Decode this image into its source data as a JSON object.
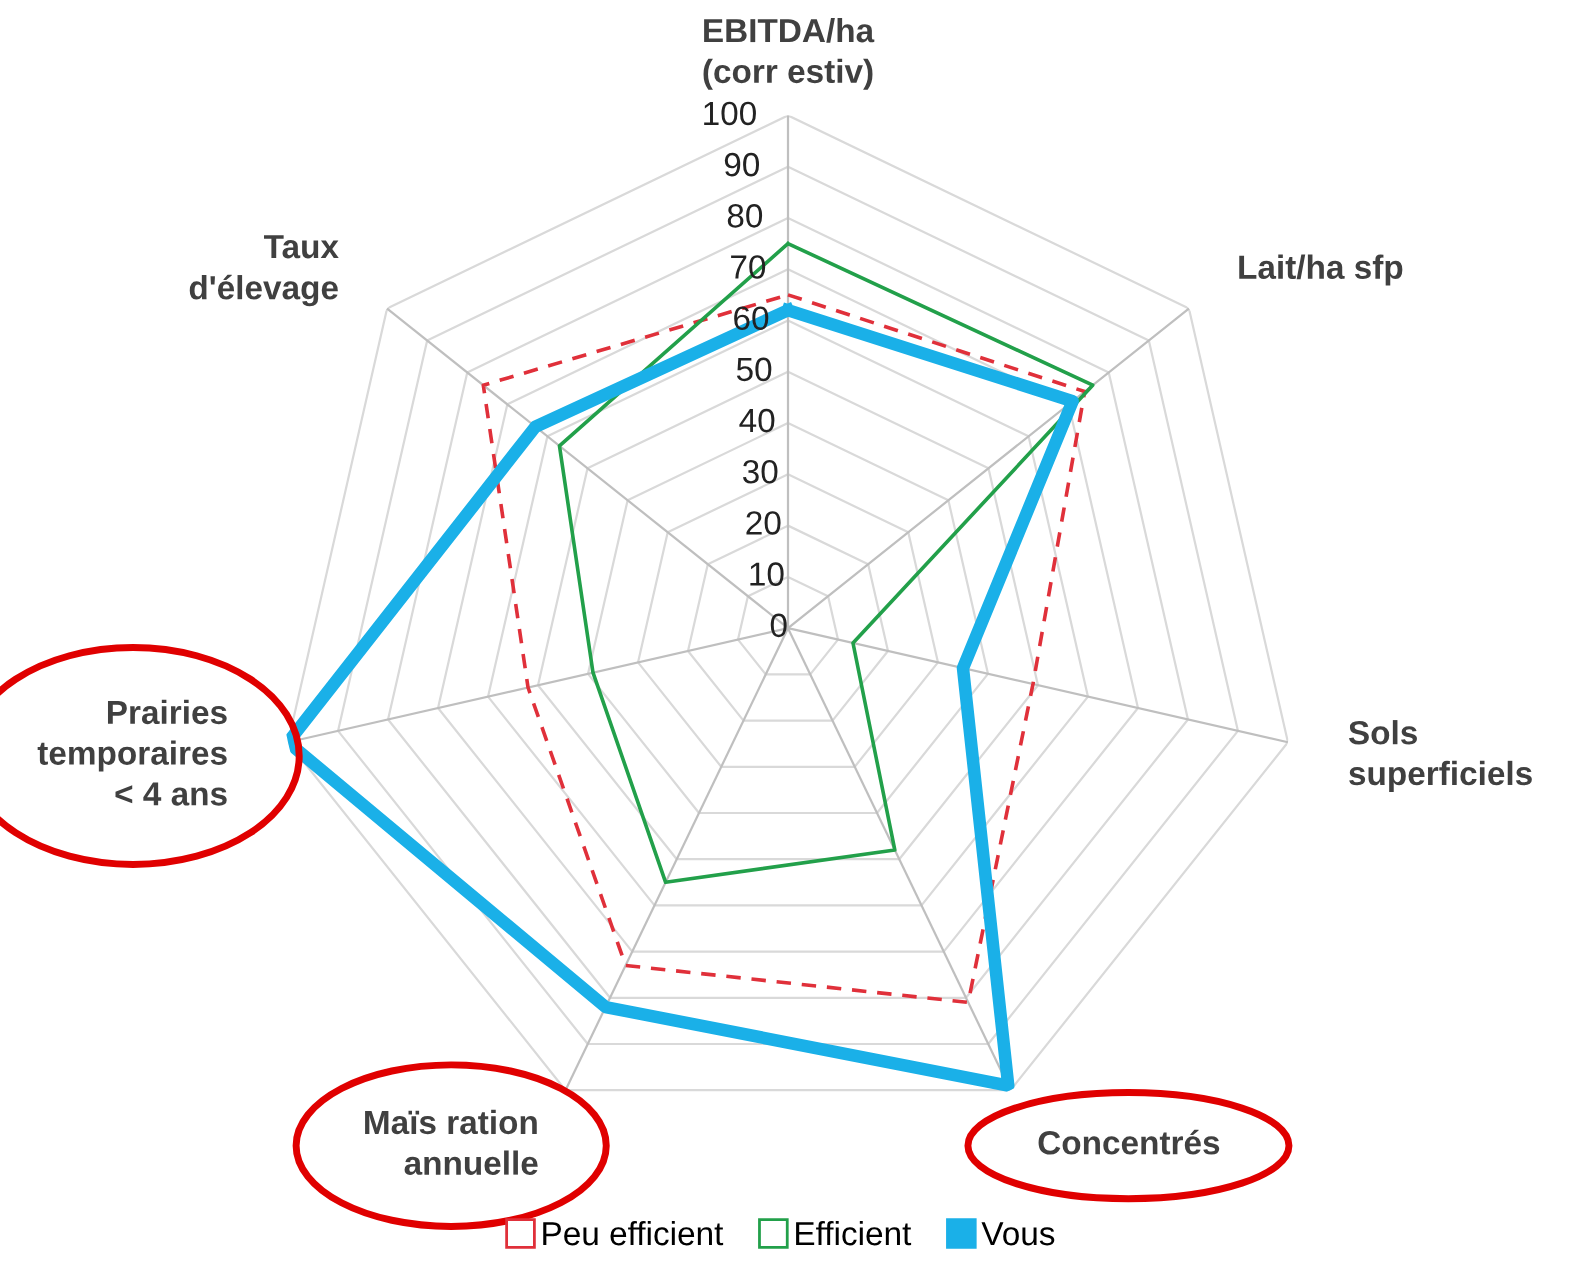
{
  "chart_data": {
    "type": "radar",
    "categories": [
      "EBITDA/ha\n(corr estiv)",
      "Lait/ha sfp",
      "Sols\nsuperficiels",
      "Concentrés",
      "Maïs ration\nannuelle",
      "Prairies\ntemporaires\n< 4 ans",
      "Taux\nd'élevage"
    ],
    "series": [
      {
        "name": "Peu efficient",
        "color": "#e0303a",
        "line_style": "dashed",
        "values": [
          65,
          74,
          49,
          81,
          73,
          52,
          76
        ]
      },
      {
        "name": "Efficient",
        "color": "#22a04a",
        "line_style": "solid",
        "values": [
          75,
          76,
          13,
          48,
          55,
          39,
          57
        ]
      },
      {
        "name": "Vous",
        "color": "#1ab0e8",
        "line_style": "solid",
        "values": [
          62,
          71,
          35,
          99,
          82,
          100,
          63
        ]
      }
    ],
    "ylim": [
      0,
      100
    ],
    "yticks": [
      0,
      10,
      20,
      30,
      40,
      50,
      60,
      70,
      80,
      90,
      100
    ],
    "grid": true,
    "legend": "bottom",
    "marker": "none"
  }
}
